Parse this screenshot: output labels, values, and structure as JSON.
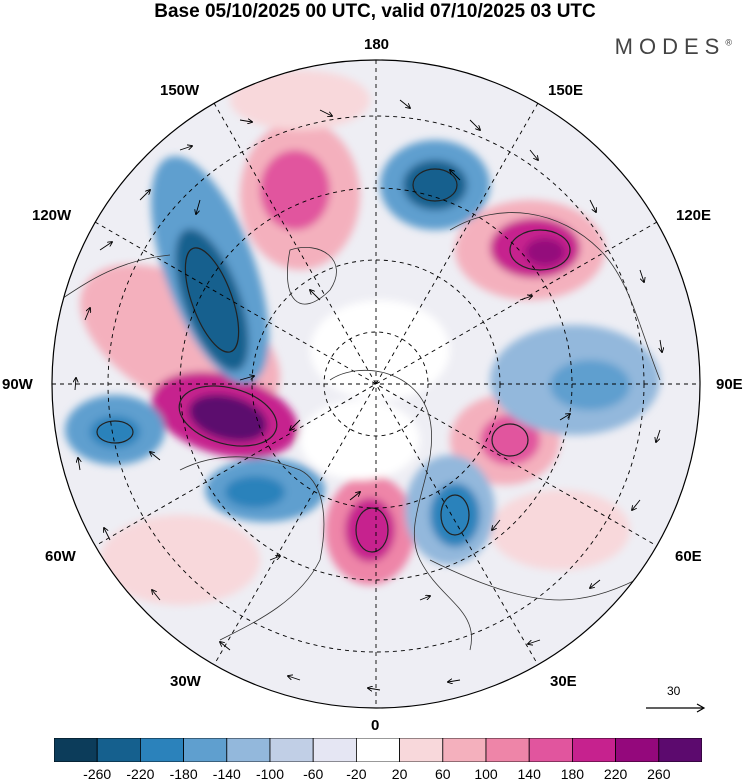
{
  "title": "Base 05/10/2025 00 UTC, valid 07/10/2025 03 UTC",
  "brand": {
    "name": "MODES",
    "mark": "®"
  },
  "longitude_labels": {
    "top": "180",
    "bottom": "0",
    "left": "90W",
    "right": "90E",
    "upper_left_1": "150W",
    "upper_left_2": "120W",
    "upper_right_1": "150E",
    "upper_right_2": "120E",
    "lower_left_1": "60W",
    "lower_left_2": "30W",
    "lower_right_1": "60E",
    "lower_right_2": "30E"
  },
  "reference_vector": {
    "value": "30"
  },
  "colorbar": {
    "colors": [
      "#0c3c5a",
      "#15608e",
      "#2b82bb",
      "#5f9fcf",
      "#93b8dc",
      "#c1cfe6",
      "#e5e6f3",
      "#ffffff",
      "#f8d8db",
      "#f4b0bd",
      "#ee85a8",
      "#e1559e",
      "#c6228e",
      "#94087c",
      "#5c0a6e"
    ],
    "ticks": [
      "-260",
      "-220",
      "-180",
      "-140",
      "-100",
      "-60",
      "-20",
      "20",
      "60",
      "100",
      "140",
      "180",
      "220",
      "260"
    ]
  }
}
